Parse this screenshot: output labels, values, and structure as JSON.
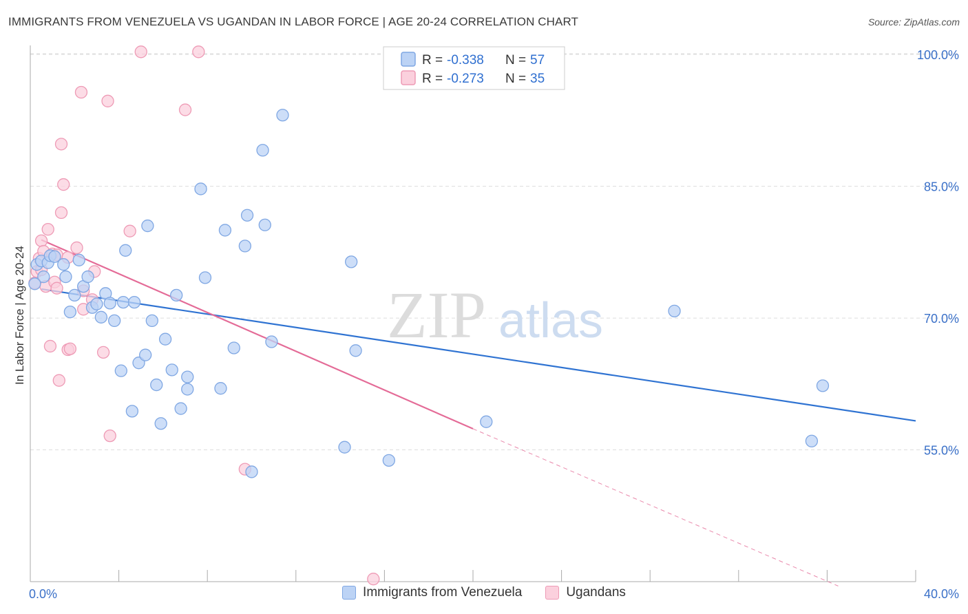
{
  "header": {
    "title": "IMMIGRANTS FROM VENEZUELA VS UGANDAN IN LABOR FORCE | AGE 20-24 CORRELATION CHART",
    "source": "Source: ZipAtlas.com"
  },
  "legend": {
    "r_label": "R =",
    "n_label": "N =",
    "series": [
      {
        "r": "-0.338",
        "n": "57"
      },
      {
        "r": "-0.273",
        "n": "35"
      }
    ]
  },
  "bottom_legend": {
    "items": [
      "Immigrants from Venezuela",
      "Ugandans"
    ]
  },
  "watermark": {
    "zip": "ZIP",
    "atlas": "atlas"
  },
  "colors": {
    "blue_line": "#2f73d2",
    "blue_fill": "#bcd3f5",
    "blue_stroke": "#7fa7e3",
    "pink_line": "#e46b97",
    "pink_fill": "#fbd0dd",
    "pink_stroke": "#ee9ab5",
    "tick_text": "#3a70c8",
    "grid": "#dddddd"
  },
  "chart_data": {
    "type": "scatter",
    "title": "IMMIGRANTS FROM VENEZUELA VS UGANDAN IN LABOR FORCE | AGE 20-24 CORRELATION CHART",
    "xlabel": "",
    "ylabel": "In Labor Force | Age 20-24",
    "xlim": [
      0,
      40
    ],
    "ylim": [
      40,
      101.5
    ],
    "x_tick_labels": [
      "0.0%",
      "40.0%"
    ],
    "y_ticks": [
      55,
      70,
      85,
      100
    ],
    "y_tick_labels": [
      "55.0%",
      "70.0%",
      "85.0%",
      "100.0%"
    ],
    "series": [
      {
        "name": "Immigrants from Venezuela",
        "color": "#2f73d2",
        "points": [
          [
            0.3,
            76.1
          ],
          [
            0.5,
            76.5
          ],
          [
            0.6,
            74.7
          ],
          [
            0.8,
            76.3
          ],
          [
            0.9,
            77.1
          ],
          [
            1.1,
            77.0
          ],
          [
            1.5,
            76.1
          ],
          [
            1.6,
            74.7
          ],
          [
            1.8,
            70.7
          ],
          [
            2.0,
            72.6
          ],
          [
            2.2,
            76.6
          ],
          [
            2.4,
            73.6
          ],
          [
            2.6,
            74.7
          ],
          [
            2.8,
            71.2
          ],
          [
            3.0,
            71.6
          ],
          [
            3.2,
            70.1
          ],
          [
            3.4,
            72.8
          ],
          [
            3.6,
            71.7
          ],
          [
            3.8,
            69.7
          ],
          [
            4.1,
            64.0
          ],
          [
            4.2,
            71.8
          ],
          [
            4.3,
            77.7
          ],
          [
            4.6,
            59.4
          ],
          [
            4.7,
            71.8
          ],
          [
            4.9,
            64.9
          ],
          [
            5.2,
            65.8
          ],
          [
            5.3,
            80.5
          ],
          [
            5.5,
            69.7
          ],
          [
            5.7,
            62.4
          ],
          [
            5.9,
            58.0
          ],
          [
            6.1,
            67.6
          ],
          [
            6.4,
            64.1
          ],
          [
            6.6,
            72.6
          ],
          [
            6.8,
            59.7
          ],
          [
            7.1,
            63.3
          ],
          [
            7.1,
            61.9
          ],
          [
            7.7,
            84.7
          ],
          [
            7.9,
            74.6
          ],
          [
            8.6,
            62.0
          ],
          [
            8.8,
            80.0
          ],
          [
            9.2,
            66.6
          ],
          [
            9.7,
            78.2
          ],
          [
            9.8,
            81.7
          ],
          [
            10.0,
            52.5
          ],
          [
            10.5,
            89.1
          ],
          [
            10.6,
            80.6
          ],
          [
            10.9,
            67.3
          ],
          [
            11.4,
            93.1
          ],
          [
            14.2,
            55.3
          ],
          [
            14.5,
            76.4
          ],
          [
            14.7,
            66.3
          ],
          [
            16.2,
            53.8
          ],
          [
            20.6,
            58.2
          ],
          [
            29.1,
            70.8
          ],
          [
            35.3,
            56.0
          ],
          [
            35.8,
            62.3
          ],
          [
            0.2,
            73.9
          ]
        ],
        "trend": {
          "x1": 0.5,
          "y1": 73.3,
          "x2": 40.0,
          "y2": 58.3
        }
      },
      {
        "name": "Ugandans",
        "color": "#e46b97",
        "points": [
          [
            0.2,
            74.0
          ],
          [
            0.3,
            75.3
          ],
          [
            0.4,
            76.8
          ],
          [
            0.5,
            78.8
          ],
          [
            0.6,
            77.6
          ],
          [
            0.7,
            73.6
          ],
          [
            0.8,
            80.1
          ],
          [
            0.9,
            66.8
          ],
          [
            1.0,
            77.3
          ],
          [
            1.1,
            74.1
          ],
          [
            1.2,
            73.4
          ],
          [
            1.2,
            77.2
          ],
          [
            1.3,
            62.9
          ],
          [
            1.4,
            82.0
          ],
          [
            1.4,
            89.8
          ],
          [
            1.5,
            85.2
          ],
          [
            1.7,
            76.9
          ],
          [
            1.7,
            66.4
          ],
          [
            1.8,
            66.5
          ],
          [
            2.1,
            78.0
          ],
          [
            2.3,
            95.7
          ],
          [
            2.4,
            73.1
          ],
          [
            2.4,
            71.0
          ],
          [
            2.8,
            72.1
          ],
          [
            2.9,
            75.3
          ],
          [
            3.3,
            66.1
          ],
          [
            3.5,
            94.7
          ],
          [
            3.6,
            56.6
          ],
          [
            4.5,
            79.9
          ],
          [
            5.0,
            100.3
          ],
          [
            7.0,
            93.7
          ],
          [
            7.6,
            100.3
          ],
          [
            9.7,
            52.8
          ],
          [
            15.5,
            40.3
          ],
          [
            0.5,
            75.5
          ]
        ],
        "trend": {
          "x1": 0.5,
          "y1": 78.9,
          "x2": 20.0,
          "y2": 57.4
        },
        "trend_dashed": {
          "x1": 20.0,
          "y1": 57.4,
          "x2": 36.5,
          "y2": 39.5
        }
      }
    ]
  }
}
